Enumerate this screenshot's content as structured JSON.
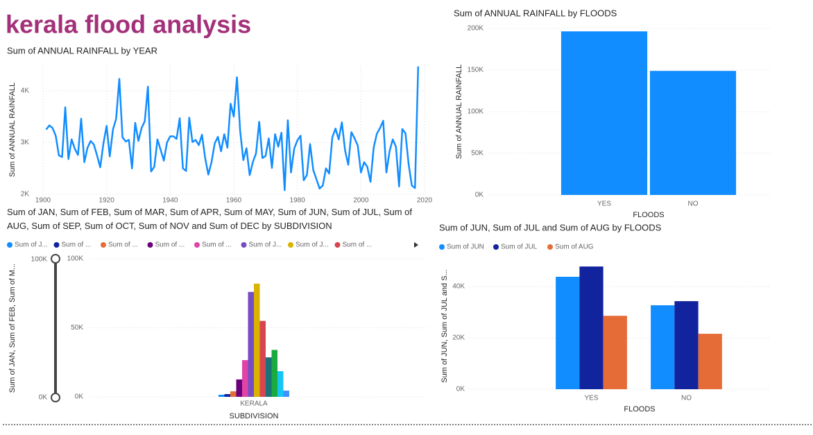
{
  "title": "kerala flood analysis",
  "chart_data": [
    {
      "type": "line",
      "title": "Sum of ANNUAL RAINFALL by YEAR",
      "y_label": "Sum of ANNUAL RAINFALL",
      "color": "#118dff",
      "grid": true,
      "x": [
        1901,
        1902,
        1903,
        1904,
        1905,
        1906,
        1907,
        1908,
        1909,
        1910,
        1911,
        1912,
        1913,
        1914,
        1915,
        1916,
        1917,
        1918,
        1919,
        1920,
        1921,
        1922,
        1923,
        1924,
        1925,
        1926,
        1927,
        1928,
        1929,
        1930,
        1931,
        1932,
        1933,
        1934,
        1935,
        1936,
        1937,
        1938,
        1939,
        1940,
        1941,
        1942,
        1943,
        1944,
        1945,
        1946,
        1947,
        1948,
        1949,
        1950,
        1951,
        1952,
        1953,
        1954,
        1955,
        1956,
        1957,
        1958,
        1959,
        1960,
        1961,
        1962,
        1963,
        1964,
        1965,
        1966,
        1967,
        1968,
        1969,
        1970,
        1971,
        1972,
        1973,
        1974,
        1975,
        1976,
        1977,
        1978,
        1979,
        1980,
        1981,
        1982,
        1983,
        1984,
        1985,
        1986,
        1987,
        1988,
        1989,
        1990,
        1991,
        1992,
        1993,
        1994,
        1995,
        1996,
        1997,
        1998,
        1999,
        2000,
        2001,
        2002,
        2003,
        2004,
        2005,
        2006,
        2007,
        2008,
        2009,
        2010,
        2011,
        2012,
        2013,
        2014,
        2015,
        2016,
        2017,
        2018
      ],
      "values": [
        3250,
        3330,
        3280,
        3130,
        2750,
        2720,
        3680,
        2680,
        3060,
        2880,
        2760,
        3460,
        2620,
        2900,
        3030,
        2960,
        2750,
        2520,
        2980,
        3320,
        2730,
        3250,
        3460,
        4230,
        3100,
        3020,
        3050,
        2500,
        3380,
        3030,
        3280,
        3410,
        4080,
        2440,
        2530,
        3060,
        2860,
        2650,
        3000,
        3120,
        3120,
        3070,
        3470,
        2500,
        2450,
        3480,
        3010,
        3050,
        2950,
        3150,
        2700,
        2380,
        2620,
        2980,
        3110,
        2830,
        3160,
        2900,
        3750,
        3500,
        4260,
        3230,
        2660,
        2890,
        2370,
        2620,
        2790,
        3400,
        2700,
        2740,
        3080,
        2510,
        3160,
        2920,
        3190,
        2080,
        3430,
        2420,
        2880,
        3040,
        3130,
        2270,
        2370,
        2970,
        2470,
        2290,
        2110,
        2170,
        2500,
        2400,
        3100,
        3270,
        3060,
        3390,
        2850,
        2570,
        3200,
        3080,
        2940,
        2420,
        2620,
        2530,
        2240,
        2900,
        3170,
        3280,
        3420,
        2420,
        2830,
        3060,
        2920,
        2150,
        3260,
        3180,
        2580,
        2170,
        2120,
        4470
      ],
      "xlim": [
        1900,
        2020
      ],
      "xticks": [
        1900,
        1920,
        1940,
        1960,
        1980,
        2000,
        2020
      ],
      "ylim": [
        2000,
        4480
      ],
      "yticks": [
        {
          "value": 2000,
          "label": "2K"
        },
        {
          "value": 3000,
          "label": "3K"
        },
        {
          "value": 4000,
          "label": "4K"
        }
      ]
    },
    {
      "type": "bar",
      "title": "Sum of ANNUAL RAINFALL by FLOODS",
      "x_label": "FLOODS",
      "y_label": "Sum of ANNUAL RAINFALL",
      "color": "#118dff",
      "grid": true,
      "categories": [
        "YES",
        "NO"
      ],
      "values": [
        196500,
        149000
      ],
      "ylim": [
        0,
        200000
      ],
      "yticks": [
        {
          "value": 0,
          "label": "0K"
        },
        {
          "value": 50000,
          "label": "50K"
        },
        {
          "value": 100000,
          "label": "100K"
        },
        {
          "value": 150000,
          "label": "150K"
        },
        {
          "value": 200000,
          "label": "200K"
        }
      ]
    },
    {
      "type": "bar",
      "title": "Sum of JAN, Sum of FEB, Sum of MAR, Sum of APR, Sum of MAY, Sum of JUN, Sum of JUL, Sum of AUG, Sum of SEP, Sum of OCT, Sum of NOV and Sum of DEC by SUBDIVISION",
      "x_label": "SUBDIVISION",
      "y_label": "Sum of JAN, Sum of FEB, Sum of M...",
      "grid": true,
      "categories": [
        "KERALA"
      ],
      "series": [
        {
          "name": "Sum of J...",
          "color": "#118dff",
          "values": [
            1500
          ]
        },
        {
          "name": "Sum of ...",
          "color": "#12239e",
          "values": [
            2000
          ]
        },
        {
          "name": "Sum of ...",
          "color": "#e66c37",
          "values": [
            4000
          ]
        },
        {
          "name": "Sum of ...",
          "color": "#6b007b",
          "values": [
            12600
          ]
        },
        {
          "name": "Sum of ...",
          "color": "#e044a7",
          "values": [
            26600
          ]
        },
        {
          "name": "Sum of J...",
          "color": "#744ec2",
          "values": [
            76000
          ]
        },
        {
          "name": "Sum of J...",
          "color": "#d9b300",
          "values": [
            82000
          ]
        },
        {
          "name": "Sum of ...",
          "color": "#d64550",
          "values": [
            55000
          ]
        },
        {
          "color": "#197278",
          "values": [
            28600
          ]
        },
        {
          "color": "#1aab40",
          "values": [
            34000
          ]
        },
        {
          "color": "#15c6f4",
          "values": [
            18600
          ]
        },
        {
          "color": "#4092ff",
          "values": [
            4500
          ]
        }
      ],
      "ylim": [
        0,
        100000
      ],
      "yticks": [
        {
          "value": 0,
          "label": "0K"
        },
        {
          "value": 50000,
          "label": "50K"
        },
        {
          "value": 100000,
          "label": "100K"
        }
      ]
    },
    {
      "type": "bar",
      "title": "Sum of JUN, Sum of JUL and Sum of AUG by FLOODS",
      "x_label": "FLOODS",
      "y_label": "Sum of JUN, Sum of JUL and S...",
      "grid": true,
      "categories": [
        "YES",
        "NO"
      ],
      "series": [
        {
          "name": "Sum of JUN",
          "color": "#118dff",
          "values": [
            43800,
            32700
          ]
        },
        {
          "name": "Sum of JUL",
          "color": "#12239e",
          "values": [
            47800,
            34300
          ]
        },
        {
          "name": "Sum of AUG",
          "color": "#e66c37",
          "values": [
            28600,
            21600
          ]
        }
      ],
      "ylim": [
        0,
        50000
      ],
      "yticks": [
        {
          "value": 0,
          "label": "0K"
        },
        {
          "value": 20000,
          "label": "20K"
        },
        {
          "value": 40000,
          "label": "40K"
        }
      ]
    }
  ]
}
